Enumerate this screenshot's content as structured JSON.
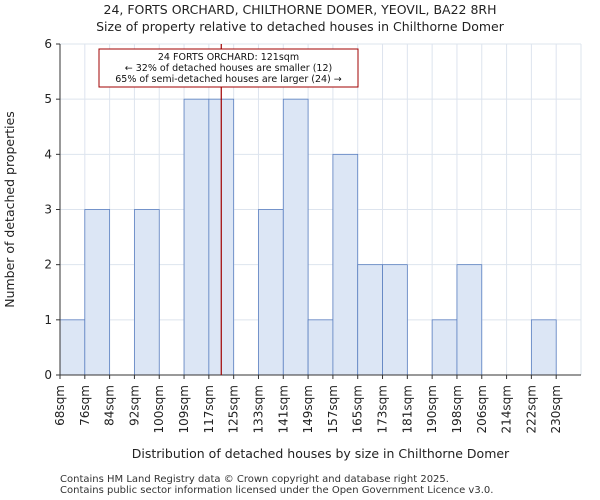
{
  "title_line1": "24, FORTS ORCHARD, CHILTHORNE DOMER, YEOVIL, BA22 8RH",
  "title_line2": "Size of property relative to detached houses in Chilthorne Domer",
  "footer_line1": "Contains HM Land Registry data © Crown copyright and database right 2025.",
  "footer_line2": "Contains public sector information licensed under the Open Government Licence v3.0.",
  "colors": {
    "bar_fill": "#dce6f5",
    "bar_stroke": "#5a7fc0",
    "marker": "#a00000",
    "grid": "#dde4ee"
  },
  "chart_data": {
    "type": "bar",
    "xlabel": "Distribution of detached houses by size in Chilthorne Domer",
    "ylabel": "Number of detached properties",
    "ylim": [
      0,
      6
    ],
    "yticks": [
      0,
      1,
      2,
      3,
      4,
      5,
      6
    ],
    "categories": [
      "68sqm",
      "76sqm",
      "84sqm",
      "92sqm",
      "100sqm",
      "109sqm",
      "117sqm",
      "125sqm",
      "133sqm",
      "141sqm",
      "149sqm",
      "157sqm",
      "165sqm",
      "173sqm",
      "181sqm",
      "190sqm",
      "198sqm",
      "206sqm",
      "214sqm",
      "222sqm",
      "230sqm"
    ],
    "values": [
      1,
      3,
      0,
      3,
      0,
      5,
      5,
      0,
      3,
      5,
      1,
      4,
      2,
      2,
      0,
      1,
      2,
      0,
      0,
      1,
      0
    ],
    "marker_bin_position": 6.5,
    "annotation": {
      "line1": "24 FORTS ORCHARD: 121sqm",
      "line2": "← 32% of detached houses are smaller (12)",
      "line3": "65% of semi-detached houses are larger (24) →"
    }
  }
}
